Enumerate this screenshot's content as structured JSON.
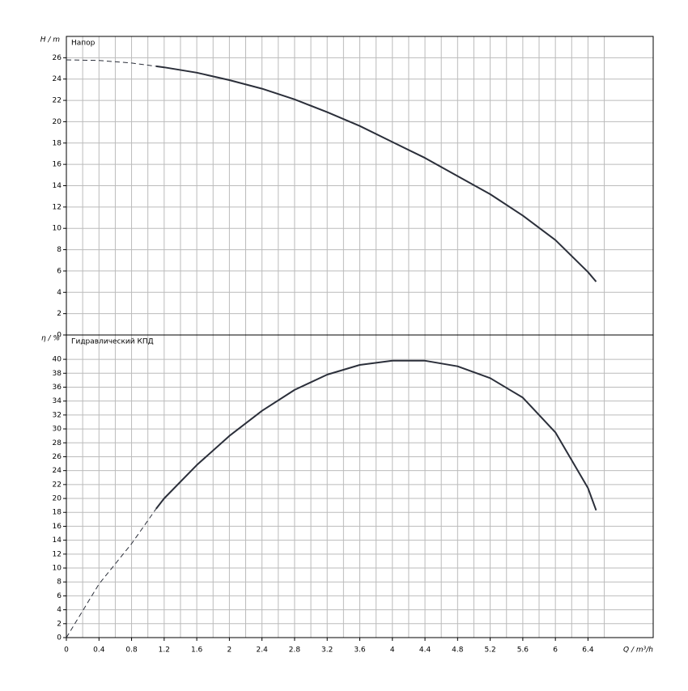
{
  "chart_data": [
    {
      "type": "line",
      "panel_label": "Напор",
      "y_label": "H / m",
      "xlim": [
        0,
        7.2
      ],
      "ylim": [
        0,
        28
      ],
      "yticks": [
        0,
        2,
        4,
        6,
        8,
        10,
        12,
        14,
        16,
        18,
        20,
        22,
        24,
        26
      ],
      "grid": true,
      "color": "#2b2f3a",
      "series": [
        {
          "style": "dashed",
          "x": [
            0,
            0.4,
            0.8,
            1.1
          ],
          "values": [
            25.8,
            25.75,
            25.5,
            25.2
          ]
        },
        {
          "style": "solid",
          "x": [
            1.1,
            1.2,
            1.6,
            2.0,
            2.4,
            2.8,
            3.2,
            3.6,
            4.0,
            4.4,
            4.8,
            5.2,
            5.6,
            6.0,
            6.4,
            6.5
          ],
          "values": [
            25.2,
            25.1,
            24.6,
            23.9,
            23.1,
            22.1,
            20.9,
            19.6,
            18.1,
            16.6,
            14.9,
            13.2,
            11.2,
            8.9,
            5.9,
            5.0
          ]
        }
      ]
    },
    {
      "type": "line",
      "panel_label": "Гидравлический КПД",
      "y_label": "η / %",
      "x_label": "Q / m³/h",
      "xlim": [
        0,
        7.2
      ],
      "ylim": [
        0,
        43.5
      ],
      "xticks": [
        0,
        0.4,
        0.8,
        1.2,
        1.6,
        2,
        2.4,
        2.8,
        3.2,
        3.6,
        4,
        4.4,
        4.8,
        5.2,
        5.6,
        6,
        6.4
      ],
      "yticks": [
        0,
        2,
        4,
        6,
        8,
        10,
        12,
        14,
        16,
        18,
        20,
        22,
        24,
        26,
        28,
        30,
        32,
        34,
        36,
        38,
        40
      ],
      "grid": true,
      "color": "#2b2f3a",
      "series": [
        {
          "style": "dashed",
          "x": [
            0,
            0.4,
            0.8,
            1.1
          ],
          "values": [
            0,
            7.7,
            13.5,
            18.5
          ]
        },
        {
          "style": "solid",
          "x": [
            1.1,
            1.2,
            1.6,
            2.0,
            2.4,
            2.8,
            3.2,
            3.6,
            4.0,
            4.4,
            4.8,
            5.2,
            5.6,
            6.0,
            6.4,
            6.5
          ],
          "values": [
            18.5,
            20,
            24.8,
            29,
            32.6,
            35.6,
            37.8,
            39.2,
            39.8,
            39.8,
            39,
            37.3,
            34.5,
            29.5,
            21.5,
            18.3
          ]
        }
      ]
    }
  ]
}
